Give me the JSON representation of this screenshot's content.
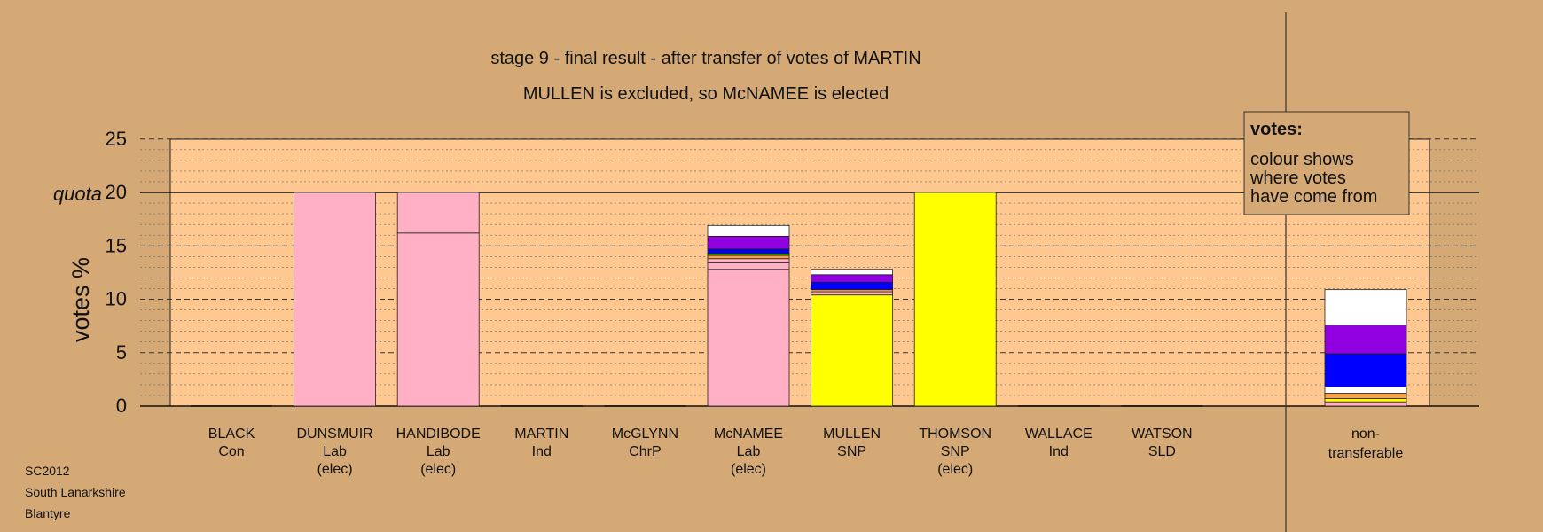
{
  "chart_data": {
    "type": "bar",
    "title": "stage 9 - final result - after transfer of votes of MARTIN",
    "subtitle": "MULLEN is excluded, so McNAMEE is elected",
    "ylabel": "votes %",
    "ylim": [
      0,
      25
    ],
    "yticks": [
      0,
      5,
      10,
      15,
      20,
      25
    ],
    "quota": 20,
    "quota_label": "quota",
    "grid": true,
    "legend": {
      "title": "votes:",
      "lines": [
        "colour shows",
        "where votes",
        "have come from"
      ],
      "placement": "top-right"
    },
    "candidates": [
      {
        "name": "BLACK",
        "party": "Con",
        "note": "",
        "segments": []
      },
      {
        "name": "DUNSMUIR",
        "party": "Lab",
        "note": "(elec)",
        "segments": [
          {
            "value": 20,
            "color": "#ffb0c4"
          }
        ]
      },
      {
        "name": "HANDIBODE",
        "party": "Lab",
        "note": "(elec)",
        "segments": [
          {
            "value": 16.2,
            "color": "#ffb0c4"
          },
          {
            "value": 3.8,
            "color": "#ffb0c4"
          }
        ]
      },
      {
        "name": "MARTIN",
        "party": "Ind",
        "note": "",
        "segments": []
      },
      {
        "name": "McGLYNN",
        "party": "ChrP",
        "note": "",
        "segments": []
      },
      {
        "name": "McNAMEE",
        "party": "Lab",
        "note": "(elec)",
        "segments": [
          {
            "value": 12.8,
            "color": "#ffb0c4"
          },
          {
            "value": 0.6,
            "color": "#ffb0c4"
          },
          {
            "value": 0.4,
            "color": "#ffb0c4"
          },
          {
            "value": 0.3,
            "color": "#ffa040"
          },
          {
            "value": 0.2,
            "color": "#30a030"
          },
          {
            "value": 0.4,
            "color": "#0000ff"
          },
          {
            "value": 1.2,
            "color": "#9000e0"
          },
          {
            "value": 1.0,
            "color": "#ffffff"
          }
        ]
      },
      {
        "name": "MULLEN",
        "party": "SNP",
        "note": "",
        "segments": [
          {
            "value": 10.4,
            "color": "#ffff00"
          },
          {
            "value": 0.3,
            "color": "#ffb0c4"
          },
          {
            "value": 0.2,
            "color": "#ffa040"
          },
          {
            "value": 0.7,
            "color": "#0000ff"
          },
          {
            "value": 0.7,
            "color": "#9000e0"
          },
          {
            "value": 0.5,
            "color": "#ffffff"
          }
        ]
      },
      {
        "name": "THOMSON",
        "party": "SNP",
        "note": "(elec)",
        "segments": [
          {
            "value": 20,
            "color": "#ffff00"
          }
        ]
      },
      {
        "name": "WALLACE",
        "party": "Ind",
        "note": "",
        "segments": []
      },
      {
        "name": "WATSON",
        "party": "SLD",
        "note": "",
        "segments": []
      }
    ],
    "nontransferable": {
      "label_lines": [
        "non-",
        "transferable"
      ],
      "segments": [
        {
          "value": 0.4,
          "color": "#ffb0c4"
        },
        {
          "value": 0.3,
          "color": "#ffff00"
        },
        {
          "value": 0.5,
          "color": "#ffa040"
        },
        {
          "value": 0.6,
          "color": "#ffffff"
        },
        {
          "value": 3.1,
          "color": "#0000ff"
        },
        {
          "value": 2.7,
          "color": "#9000e0"
        },
        {
          "value": 3.3,
          "color": "#ffffff"
        }
      ]
    },
    "footer": [
      "SC2012",
      "South Lanarkshire",
      "Blantyre"
    ]
  },
  "colors": {
    "page_background": "#d4a976",
    "plot_background": "#ffc890",
    "lab": "#ffb0c4",
    "snp": "#ffff00"
  }
}
